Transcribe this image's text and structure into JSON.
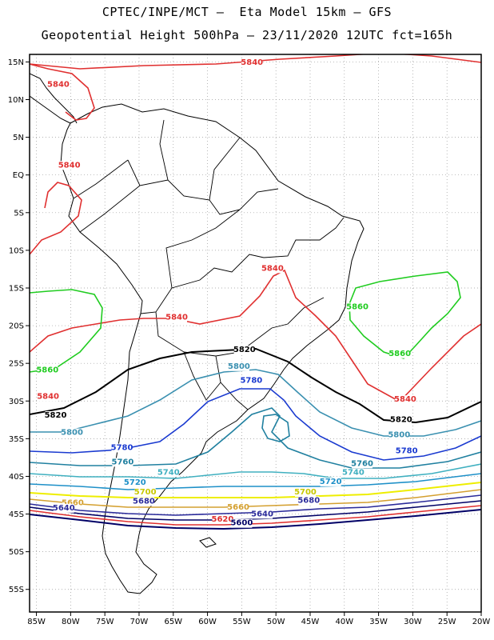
{
  "header": {
    "line1": "CPTEC/INPE/MCT –  Eta Model 15km – GFS",
    "line2": "Geopotential Height 500hPa – 23/11/2020 12UTC fct=165h"
  },
  "map": {
    "lon_range": [
      -86,
      -20
    ],
    "lat_range": [
      -58,
      16
    ],
    "lon_ticks": [
      {
        "value": -85,
        "label": "85W"
      },
      {
        "value": -80,
        "label": "80W"
      },
      {
        "value": -75,
        "label": "75W"
      },
      {
        "value": -70,
        "label": "70W"
      },
      {
        "value": -65,
        "label": "65W"
      },
      {
        "value": -60,
        "label": "60W"
      },
      {
        "value": -55,
        "label": "55W"
      },
      {
        "value": -50,
        "label": "50W"
      },
      {
        "value": -45,
        "label": "45W"
      },
      {
        "value": -40,
        "label": "40W"
      },
      {
        "value": -35,
        "label": "35W"
      },
      {
        "value": -30,
        "label": "30W"
      },
      {
        "value": -25,
        "label": "25W"
      },
      {
        "value": -20,
        "label": "20W"
      }
    ],
    "lat_ticks": [
      {
        "value": 15,
        "label": "15N"
      },
      {
        "value": 10,
        "label": "10N"
      },
      {
        "value": 5,
        "label": "5N"
      },
      {
        "value": 0,
        "label": "EQ"
      },
      {
        "value": -5,
        "label": "5S"
      },
      {
        "value": -10,
        "label": "10S"
      },
      {
        "value": -15,
        "label": "15S"
      },
      {
        "value": -20,
        "label": "20S"
      },
      {
        "value": -25,
        "label": "25S"
      },
      {
        "value": -30,
        "label": "30S"
      },
      {
        "value": -35,
        "label": "35S"
      },
      {
        "value": -40,
        "label": "40S"
      },
      {
        "value": -45,
        "label": "45S"
      },
      {
        "value": -50,
        "label": "50S"
      },
      {
        "value": -55,
        "label": "55S"
      }
    ],
    "grid": "dotted",
    "contour_colors": {
      "5600": "#000066",
      "5640": "#2a2a9a",
      "5660": "#cc9933",
      "5680": "#d4a030",
      "5700": "#eeee00",
      "5720": "#1e90c8",
      "5740": "#40b0c0",
      "5760": "#2080a0",
      "5780": "#1a3ad0",
      "5800": "#3a90b0",
      "5820": "#000000",
      "5840": "#e03030",
      "5860": "#20cc20"
    },
    "contour_labels": [
      {
        "text": "5840",
        "lon": -53.5,
        "lat": 14.6,
        "color": "#e03030"
      },
      {
        "text": "5840",
        "lon": -81.8,
        "lat": 11.7,
        "color": "#e03030"
      },
      {
        "text": "5840",
        "lon": -80.2,
        "lat": 1.0,
        "color": "#e03030"
      },
      {
        "text": "5840",
        "lon": -50.5,
        "lat": -12.7,
        "color": "#e03030"
      },
      {
        "text": "5840",
        "lon": -64.5,
        "lat": -19.2,
        "color": "#e03030"
      },
      {
        "text": "5840",
        "lon": -83.3,
        "lat": -29.7,
        "color": "#e03030"
      },
      {
        "text": "5840",
        "lon": -31.1,
        "lat": -30.1,
        "color": "#e03030"
      },
      {
        "text": "5860",
        "lon": -38.1,
        "lat": -17.8,
        "color": "#20cc20"
      },
      {
        "text": "5860",
        "lon": -31.9,
        "lat": -24.0,
        "color": "#20cc20"
      },
      {
        "text": "5860",
        "lon": -83.4,
        "lat": -26.2,
        "color": "#20cc20"
      },
      {
        "text": "5820",
        "lon": -54.6,
        "lat": -23.5,
        "color": "#000000"
      },
      {
        "text": "5820",
        "lon": -82.2,
        "lat": -32.2,
        "color": "#000000"
      },
      {
        "text": "5820",
        "lon": -31.7,
        "lat": -32.8,
        "color": "#000000"
      },
      {
        "text": "5800",
        "lon": -55.4,
        "lat": -25.7,
        "color": "#3a90b0"
      },
      {
        "text": "5800",
        "lon": -79.8,
        "lat": -34.5,
        "color": "#3a90b0"
      },
      {
        "text": "5800",
        "lon": -32.0,
        "lat": -34.8,
        "color": "#3a90b0"
      },
      {
        "text": "5780",
        "lon": -53.6,
        "lat": -27.6,
        "color": "#1a3ad0"
      },
      {
        "text": "5780",
        "lon": -72.5,
        "lat": -36.5,
        "color": "#1a3ad0"
      },
      {
        "text": "5780",
        "lon": -30.9,
        "lat": -36.9,
        "color": "#1a3ad0"
      },
      {
        "text": "5760",
        "lon": -72.4,
        "lat": -38.4,
        "color": "#2080a0"
      },
      {
        "text": "5760",
        "lon": -37.4,
        "lat": -38.6,
        "color": "#2080a0"
      },
      {
        "text": "5740",
        "lon": -65.7,
        "lat": -39.8,
        "color": "#40b0c0"
      },
      {
        "text": "5740",
        "lon": -38.7,
        "lat": -39.8,
        "color": "#40b0c0"
      },
      {
        "text": "5720",
        "lon": -70.6,
        "lat": -41.1,
        "color": "#1e90c8"
      },
      {
        "text": "5720",
        "lon": -42.0,
        "lat": -41.0,
        "color": "#1e90c8"
      },
      {
        "text": "5700",
        "lon": -69.1,
        "lat": -42.4,
        "color": "#c8c800"
      },
      {
        "text": "5700",
        "lon": -45.7,
        "lat": -42.4,
        "color": "#c8c800"
      },
      {
        "text": "5680",
        "lon": -69.3,
        "lat": -43.6,
        "color": "#2a2a9a"
      },
      {
        "text": "5680",
        "lon": -45.2,
        "lat": -43.5,
        "color": "#2a2a9a"
      },
      {
        "text": "5660",
        "lon": -79.7,
        "lat": -43.8,
        "color": "#d4a030"
      },
      {
        "text": "5660",
        "lon": -55.5,
        "lat": -44.4,
        "color": "#d4a030"
      },
      {
        "text": "5640",
        "lon": -81.0,
        "lat": -44.5,
        "color": "#2a2a9a"
      },
      {
        "text": "5640",
        "lon": -52.0,
        "lat": -45.3,
        "color": "#2a2a9a"
      },
      {
        "text": "5620",
        "lon": -57.8,
        "lat": -46.0,
        "color": "#e03030"
      },
      {
        "text": "5600",
        "lon": -55.0,
        "lat": -46.5,
        "color": "#000066"
      }
    ]
  }
}
